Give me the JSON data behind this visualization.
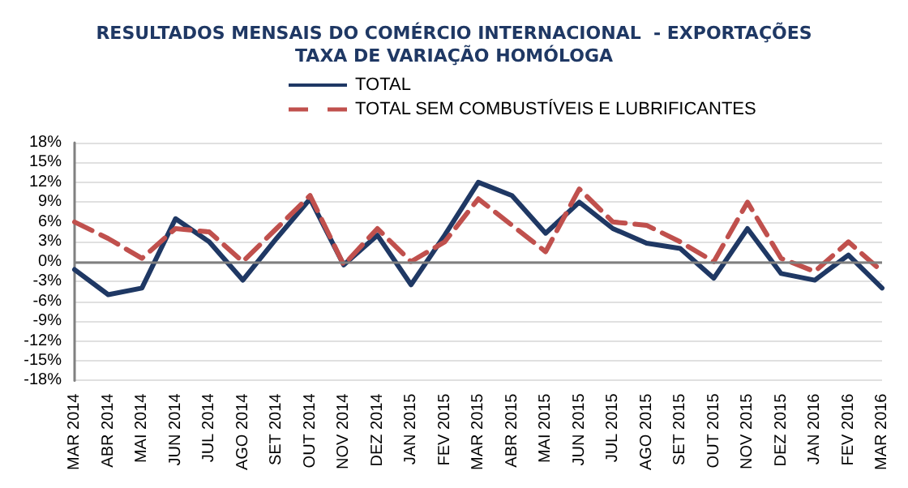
{
  "chart_data": {
    "type": "line",
    "title": "RESULTADOS MENSAIS DO COMÉRCIO INTERNACIONAL  - EXPORTAÇÕES",
    "subtitle": "TAXA DE VARIAÇÃO HOMÓLOGA",
    "categories": [
      "MAR 2014",
      "ABR 2014",
      "MAI 2014",
      "JUN 2014",
      "JUL 2014",
      "AGO 2014",
      "SET 2014",
      "OUT 2014",
      "NOV 2014",
      "DEZ 2014",
      "JAN 2015",
      "FEV 2015",
      "MAR 2015",
      "ABR 2015",
      "MAI 2015",
      "JUN 2015",
      "JUL 2015",
      "AGO 2015",
      "SET 2015",
      "OUT 2015",
      "NOV 2015",
      "DEZ 2015",
      "JAN 2016",
      "FEV 2016",
      "MAR 2016"
    ],
    "series": [
      {
        "name": "TOTAL",
        "color": "#1f3864",
        "line_style": "solid",
        "values": [
          -1.2,
          -5,
          -4,
          6.5,
          3,
          -2.8,
          3.5,
          9.5,
          -0.5,
          4,
          -3.5,
          4,
          12,
          10,
          4.3,
          9,
          5,
          2.8,
          2,
          -2.5,
          5,
          -1.8,
          -2.8,
          1,
          -4
        ]
      },
      {
        "name": "TOTAL SEM COMBUSTÍVEIS E LUBRIFICANTES",
        "color": "#c0504d",
        "line_style": "dashed",
        "values": [
          6,
          3.5,
          0.5,
          5,
          4.5,
          0,
          5,
          10,
          -0.5,
          5,
          0,
          3,
          9.5,
          5.5,
          1.5,
          11,
          6,
          5.5,
          3,
          0,
          9,
          0.5,
          -1.5,
          3,
          -1.5
        ]
      }
    ],
    "ylim": [
      -18,
      18
    ],
    "yticks": [
      {
        "value": -18,
        "label": "-18%"
      },
      {
        "value": -15,
        "label": "-15%"
      },
      {
        "value": -12,
        "label": "-12%"
      },
      {
        "value": -9,
        "label": "-9%"
      },
      {
        "value": -6,
        "label": "-6%"
      },
      {
        "value": -3,
        "label": "-3%"
      },
      {
        "value": 0,
        "label": "0%"
      },
      {
        "value": 3,
        "label": "3%"
      },
      {
        "value": 6,
        "label": "6%"
      },
      {
        "value": 9,
        "label": "9%"
      },
      {
        "value": 12,
        "label": "12%"
      },
      {
        "value": 15,
        "label": "15%"
      },
      {
        "value": 18,
        "label": "18%"
      }
    ],
    "grid": "y",
    "legend": "top",
    "marker": "none"
  }
}
